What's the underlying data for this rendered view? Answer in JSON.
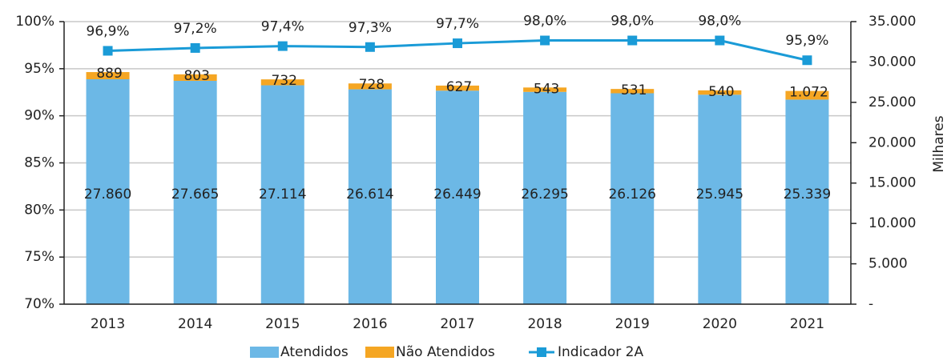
{
  "chart_data": {
    "type": "bar",
    "stacked": true,
    "categories": [
      "2013",
      "2014",
      "2015",
      "2016",
      "2017",
      "2018",
      "2019",
      "2020",
      "2021"
    ],
    "series": [
      {
        "name": "Atendidos",
        "color": "#6cb8e6",
        "axis": "y2",
        "values": [
          27860,
          27665,
          27114,
          26614,
          26449,
          26295,
          26126,
          25945,
          25339
        ],
        "value_labels": [
          "27.860",
          "27.665",
          "27.114",
          "26.614",
          "26.449",
          "26.295",
          "26.126",
          "25.945",
          "25.339"
        ]
      },
      {
        "name": "Não Atendidos",
        "color": "#f5a623",
        "axis": "y2",
        "values": [
          889,
          803,
          732,
          728,
          627,
          543,
          531,
          540,
          1072
        ],
        "value_labels": [
          "889",
          "803",
          "732",
          "728",
          "627",
          "543",
          "531",
          "540",
          "1.072"
        ]
      },
      {
        "name": "Indicador 2A",
        "color": "#1a9bd7",
        "axis": "y",
        "type": "line",
        "values": [
          96.9,
          97.2,
          97.4,
          97.3,
          97.7,
          98.0,
          98.0,
          98.0,
          95.9
        ],
        "value_labels": [
          "96,9%",
          "97,2%",
          "97,4%",
          "97,3%",
          "97,7%",
          "98,0%",
          "98,0%",
          "98,0%",
          "95,9%"
        ]
      }
    ],
    "ylim": [
      70,
      100
    ],
    "yticks": [
      {
        "value": 70,
        "label": "70%"
      },
      {
        "value": 75,
        "label": "75%"
      },
      {
        "value": 80,
        "label": "80%"
      },
      {
        "value": 85,
        "label": "85%"
      },
      {
        "value": 90,
        "label": "90%"
      },
      {
        "value": 95,
        "label": "95%"
      },
      {
        "value": 100,
        "label": "100%"
      }
    ],
    "y2lim": [
      0,
      35000
    ],
    "y2ticks": [
      {
        "value": 0,
        "label": "-"
      },
      {
        "value": 5000,
        "label": "5.000"
      },
      {
        "value": 10000,
        "label": "10.000"
      },
      {
        "value": 15000,
        "label": "15.000"
      },
      {
        "value": 20000,
        "label": "20.000"
      },
      {
        "value": 25000,
        "label": "25.000"
      },
      {
        "value": 30000,
        "label": "30.000"
      },
      {
        "value": 35000,
        "label": "35.000"
      }
    ],
    "y2_label": "Milhares",
    "grid": true,
    "legend": "bottom"
  }
}
